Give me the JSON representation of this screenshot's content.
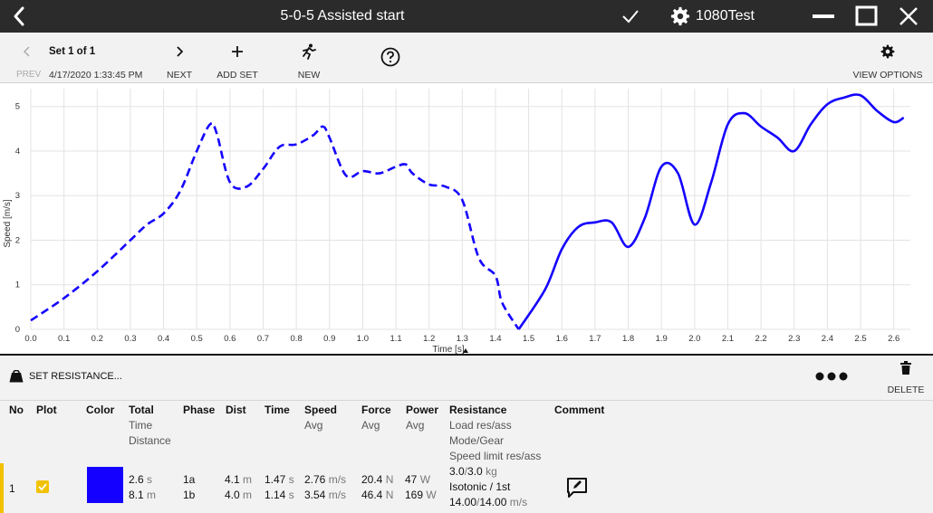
{
  "titlebar": {
    "title": "5-0-5 Assisted start",
    "user": "1080Test",
    "icons": [
      "back-icon",
      "check-icon",
      "gear-icon",
      "minimize-icon",
      "maximize-icon",
      "close-icon"
    ]
  },
  "toolbar": {
    "set_title": "Set 1 of 1",
    "prev_label": "PREV",
    "date": "4/17/2020 1:33:45 PM",
    "next_label": "NEXT",
    "add_set_label": "ADD SET",
    "new_label": "NEW",
    "view_options_label": "VIEW OPTIONS"
  },
  "chart_data": {
    "type": "line",
    "title": "",
    "xlabel": "Time [s]",
    "ylabel": "Speed [m/s]",
    "xlim": [
      0,
      2.65
    ],
    "ylim": [
      0,
      5.4
    ],
    "xticks": [
      0.0,
      0.1,
      0.2,
      0.3,
      0.4,
      0.5,
      0.6,
      0.7,
      0.8,
      0.9,
      1.0,
      1.1,
      1.2,
      1.3,
      1.4,
      1.5,
      1.6,
      1.7,
      1.8,
      1.9,
      2.0,
      2.1,
      2.2,
      2.3,
      2.4,
      2.5,
      2.6
    ],
    "xtick_labels": [
      "0.0",
      "0.1",
      "0.2",
      "0.3",
      "0.4",
      "0.5",
      "0.6",
      "0.7",
      "0.8",
      "0.9",
      "1.0",
      "1.1",
      "1.2",
      "1.3",
      "1.4",
      "1.5",
      "1.6",
      "1.7",
      "1.8",
      "1.9",
      "2.0",
      "2.1",
      "2.2",
      "2.3",
      "2.4",
      "2.5",
      "2.6"
    ],
    "yticks": [
      0,
      1,
      2,
      3,
      4,
      5
    ],
    "ytick_labels": [
      "0",
      "1",
      "2",
      "3",
      "4",
      "5"
    ],
    "grid": true,
    "color": "#1400ff",
    "series": [
      {
        "phase": "1a",
        "style": "dashed",
        "x": [
          0.0,
          0.1,
          0.2,
          0.3,
          0.35,
          0.4,
          0.45,
          0.5,
          0.54,
          0.56,
          0.6,
          0.65,
          0.7,
          0.75,
          0.8,
          0.85,
          0.88,
          0.9,
          0.95,
          1.0,
          1.05,
          1.1,
          1.13,
          1.15,
          1.2,
          1.25,
          1.3,
          1.35,
          1.4,
          1.42,
          1.47
        ],
        "y": [
          0.2,
          0.7,
          1.3,
          2.0,
          2.35,
          2.6,
          3.1,
          4.0,
          4.6,
          4.4,
          3.3,
          3.2,
          3.6,
          4.1,
          4.15,
          4.35,
          4.55,
          4.3,
          3.45,
          3.55,
          3.5,
          3.65,
          3.7,
          3.5,
          3.25,
          3.2,
          2.9,
          1.6,
          1.2,
          0.6,
          0.0
        ]
      },
      {
        "phase": "1b",
        "style": "solid",
        "x": [
          1.47,
          1.55,
          1.6,
          1.65,
          1.7,
          1.75,
          1.8,
          1.85,
          1.9,
          1.95,
          2.0,
          2.05,
          2.1,
          2.15,
          2.2,
          2.25,
          2.3,
          2.35,
          2.4,
          2.45,
          2.5,
          2.55,
          2.6,
          2.63
        ],
        "y": [
          0.0,
          0.9,
          1.8,
          2.3,
          2.4,
          2.4,
          1.85,
          2.5,
          3.65,
          3.5,
          2.35,
          3.3,
          4.6,
          4.85,
          4.55,
          4.3,
          4.0,
          4.6,
          5.05,
          5.2,
          5.25,
          4.9,
          4.65,
          4.75
        ]
      }
    ]
  },
  "actions": {
    "set_resistance_label": "SET RESISTANCE...",
    "delete_label": "DELETE"
  },
  "table": {
    "headers": {
      "no": "No",
      "plot": "Plot",
      "color": "Color",
      "total": "Total",
      "total_sub1": "Time",
      "total_sub2": "Distance",
      "phase": "Phase",
      "dist": "Dist",
      "time": "Time",
      "speed": "Speed",
      "speed_sub": "Avg",
      "force": "Force",
      "force_sub": "Avg",
      "power": "Power",
      "power_sub": "Avg",
      "resistance": "Resistance",
      "res_sub1": "Load res/ass",
      "res_sub2": "Mode/Gear",
      "res_sub3": "Speed limit res/ass",
      "comment": "Comment"
    },
    "row": {
      "no": "1",
      "plot_checked": true,
      "color": "#1400ff",
      "total_time": "2.6",
      "total_time_unit": "s",
      "total_dist": "8.1",
      "total_dist_unit": "m",
      "phase_a": "1a",
      "phase_b": "1b",
      "dist_a": "4.1",
      "dist_b": "4.0",
      "dist_unit": "m",
      "time_a": "1.47",
      "time_b": "1.14",
      "time_unit": "s",
      "speed_a": "2.76",
      "speed_b": "3.54",
      "speed_unit": "m/s",
      "force_a": "20.4",
      "force_b": "46.4",
      "force_unit": "N",
      "power_a": "47",
      "power_b": "169",
      "power_unit": "W",
      "load": "3.0",
      "load_sep": "/",
      "load_ass": "3.0",
      "load_unit": "kg",
      "mode": "Isotonic / 1st",
      "speed_limit": "14.00",
      "speed_limit_sep": "/",
      "speed_limit_ass": "14.00",
      "speed_limit_unit": "m/s"
    }
  }
}
